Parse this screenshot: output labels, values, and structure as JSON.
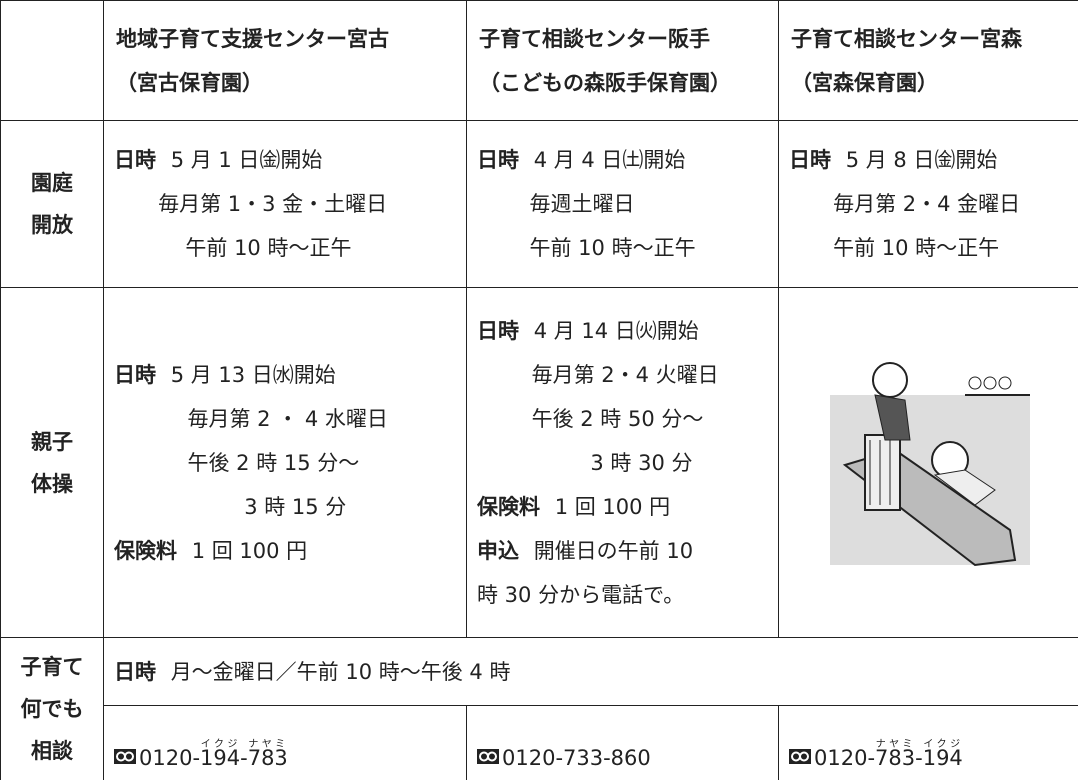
{
  "table": {
    "header": {
      "cells": [
        [
          "地域子育て支援センター宮古",
          "（宮古保育園）"
        ],
        [
          "子育て相談センター阪手",
          "（こどもの森阪手保育園）"
        ],
        [
          "子育て相談センター宮森",
          "（宮森保育園）"
        ]
      ]
    },
    "rows": [
      {
        "heading": [
          "園庭",
          "開放"
        ],
        "cells": [
          [
            {
              "label": "日時",
              "text": "5 月 1 日㈮開始"
            },
            {
              "text": "毎月第 1・3 金・土曜日"
            },
            {
              "text": "午前 10 時〜正午"
            }
          ],
          [
            {
              "label": "日時",
              "text": "4 月 4 日㈯開始"
            },
            {
              "text": "毎週土曜日"
            },
            {
              "text": "午前 10 時〜正午"
            }
          ],
          [
            {
              "label": "日時",
              "text": "5 月 8 日㈮開始"
            },
            {
              "text": "毎月第 2・4 金曜日"
            },
            {
              "text": "午前 10 時〜正午"
            }
          ]
        ]
      },
      {
        "heading": [
          "親子",
          "体操"
        ],
        "cells": [
          [
            {
              "label": "日時",
              "text": "5 月 13 日㈬開始"
            },
            {
              "text": "毎月第 2 ・ 4 水曜日"
            },
            {
              "text": "午後 2 時 15 分〜"
            },
            {
              "text": "3 時 15 分"
            },
            {
              "label": "保険料",
              "text": "1 回 100 円"
            }
          ],
          [
            {
              "label": "日時",
              "text": "4 月 14 日㈫開始"
            },
            {
              "text": "毎月第 2・4 火曜日"
            },
            {
              "text": "午後 2 時 50 分〜"
            },
            {
              "text": "3 時 30 分"
            },
            {
              "label": "保険料",
              "text": "1 回 100 円"
            },
            {
              "label": "申込",
              "text": "開催日の午前 10"
            },
            {
              "text": "時 30 分から電話で。"
            }
          ]
        ]
      },
      {
        "heading": [
          "子育て",
          "何でも",
          "相談"
        ],
        "schedule": {
          "label": "日時",
          "text": "月〜金曜日／午前 10 時〜午後 4 時"
        },
        "phones": [
          [
            {
              "text": "0120-"
            },
            {
              "text": "194",
              "ruby": "イクジ"
            },
            {
              "text": "-"
            },
            {
              "text": "783",
              "ruby": "ナヤミ"
            }
          ],
          [
            {
              "text": "0120-733-860"
            }
          ],
          [
            {
              "text": "0120-"
            },
            {
              "text": "783",
              "ruby": "ナヤミ"
            },
            {
              "text": "-"
            },
            {
              "text": "194",
              "ruby": "イクジ"
            }
          ]
        ]
      }
    ]
  }
}
